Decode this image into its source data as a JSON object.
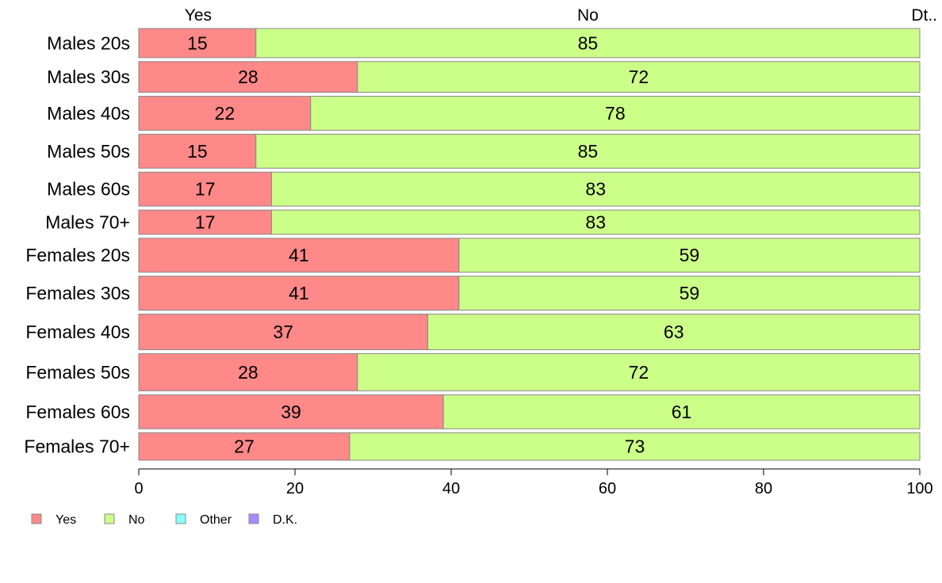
{
  "chart_data": {
    "type": "bar",
    "orientation": "horizontal",
    "stacked": true,
    "categories": [
      "Males 20s",
      "Males 30s",
      "Males 40s",
      "Males 50s",
      "Males 60s",
      "Males 70+",
      "Females 20s",
      "Females 30s",
      "Females 40s",
      "Females 50s",
      "Females 60s",
      "Females 70+"
    ],
    "series": [
      {
        "name": "Yes",
        "values": [
          15,
          28,
          22,
          15,
          17,
          17,
          41,
          41,
          37,
          28,
          39,
          27
        ]
      },
      {
        "name": "No",
        "values": [
          85,
          72,
          78,
          85,
          83,
          83,
          59,
          59,
          63,
          72,
          61,
          73
        ]
      },
      {
        "name": "Other",
        "values": [
          0,
          0,
          0,
          0,
          0,
          0,
          0,
          0,
          0,
          0,
          0,
          0
        ]
      },
      {
        "name": "D.K.",
        "values": [
          0,
          0,
          0,
          0,
          0,
          0,
          0,
          0,
          0,
          0,
          0,
          0
        ]
      }
    ],
    "top_labels": [
      "Yes",
      "No",
      "Dt.."
    ],
    "xlim": [
      0,
      100
    ],
    "xticks": [
      0,
      20,
      40,
      60,
      80,
      100
    ],
    "row_weights": [
      36,
      38,
      42,
      42,
      42,
      30,
      42,
      42,
      44,
      46,
      42,
      34
    ],
    "legend": {
      "position": "bottom-left",
      "entries": [
        "Yes",
        "No",
        "Other",
        "D.K."
      ]
    },
    "grid": false,
    "colors": {
      "Yes": "#FF8888",
      "No": "#CCFF88",
      "Other": "#88FFFF",
      "D.K.": "#AA88FF"
    }
  }
}
